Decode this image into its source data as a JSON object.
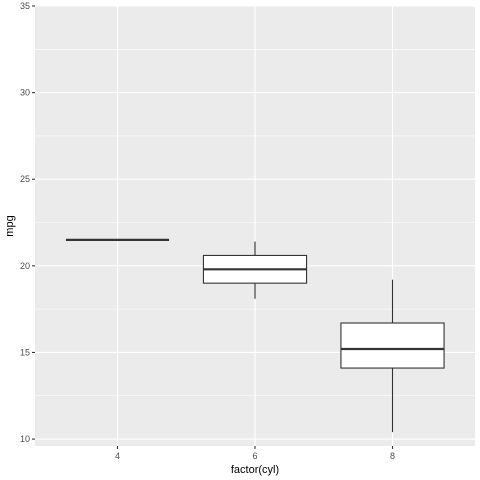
{
  "chart_data": {
    "type": "boxplot",
    "xlabel": "factor(cyl)",
    "ylabel": "mpg",
    "ylim": [
      9.6,
      35.0
    ],
    "y_ticks": [
      10,
      15,
      20,
      25,
      30,
      35
    ],
    "y_minor_ticks": [
      12.5,
      17.5,
      22.5,
      27.5,
      32.5
    ],
    "categories": [
      "4",
      "6",
      "8"
    ],
    "boxes": [
      {
        "category": "4",
        "min": 21.5,
        "q1": 21.5,
        "median": 21.5,
        "q3": 21.5,
        "max": 21.5
      },
      {
        "category": "6",
        "min": 18.1,
        "q1": 19.0,
        "median": 19.8,
        "q3": 20.6,
        "max": 21.4
      },
      {
        "category": "8",
        "min": 10.4,
        "q1": 14.1,
        "median": 15.2,
        "q3": 16.7,
        "max": 19.2
      }
    ],
    "grid": true,
    "colors": {
      "panel_background": "#ebebeb",
      "grid": "#ffffff",
      "box_fill": "#ffffff",
      "box_line": "#333333",
      "tick_label": "#4d4d4d"
    }
  }
}
